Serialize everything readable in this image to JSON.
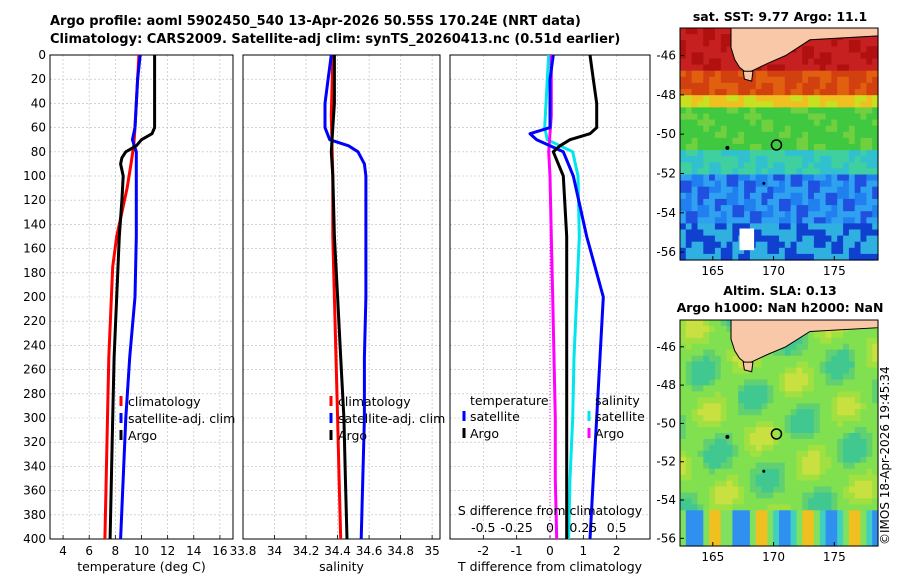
{
  "title": {
    "line1": "Argo profile: aoml 5902450_540 13-Apr-2026 50.55S 170.24E (NRT data)",
    "line2": "Climatology: CARS2009. Satellite-adj clim: synTS_20260413.nc (0.51d earlier)"
  },
  "colors": {
    "climatology": "#ff0000",
    "satellite": "#0000ff",
    "argo": "#000000",
    "sat_salinity": "#00e5ee",
    "clim_salinity": "#ff00ff"
  },
  "chart_data": [
    {
      "type": "line",
      "name": "temperature-profile",
      "xlabel": "temperature (deg C)",
      "ylabel": "",
      "xlim": [
        3,
        17
      ],
      "ylim": [
        400,
        0
      ],
      "xticks": [
        4,
        6,
        8,
        10,
        12,
        14,
        16
      ],
      "yticks": [
        0,
        20,
        40,
        60,
        80,
        100,
        120,
        140,
        160,
        180,
        200,
        220,
        240,
        260,
        280,
        300,
        320,
        340,
        360,
        380,
        400
      ],
      "legend": [
        "climatology",
        "satellite-adj. clim",
        "Argo"
      ],
      "series": [
        {
          "name": "climatology",
          "depth": [
            0,
            20,
            40,
            60,
            75,
            90,
            110,
            130,
            150,
            175,
            200,
            250,
            300,
            350,
            400
          ],
          "values": [
            9.8,
            9.7,
            9.6,
            9.5,
            9.4,
            9.2,
            8.9,
            8.5,
            8.1,
            7.8,
            7.7,
            7.5,
            7.4,
            7.3,
            7.2
          ]
        },
        {
          "name": "satellite-adj. clim",
          "depth": [
            0,
            20,
            40,
            60,
            70,
            80,
            100,
            150,
            200,
            250,
            300,
            350,
            400
          ],
          "values": [
            9.9,
            9.7,
            9.6,
            9.5,
            9.3,
            9.6,
            9.6,
            9.6,
            9.5,
            9.1,
            8.8,
            8.6,
            8.4
          ]
        },
        {
          "name": "Argo",
          "depth": [
            0,
            20,
            40,
            60,
            65,
            70,
            75,
            80,
            85,
            90,
            100,
            120,
            150,
            200,
            250,
            300,
            350,
            400
          ],
          "values": [
            11.0,
            11.0,
            11.0,
            11.0,
            10.8,
            10.0,
            9.6,
            8.8,
            8.5,
            8.4,
            8.6,
            8.5,
            8.3,
            8.1,
            7.9,
            7.8,
            7.7,
            7.6
          ]
        }
      ]
    },
    {
      "type": "line",
      "name": "salinity-profile",
      "xlabel": "salinity",
      "ylabel": "",
      "xlim": [
        33.8,
        35.05
      ],
      "ylim": [
        400,
        0
      ],
      "xticks": [
        33.8,
        34,
        34.2,
        34.4,
        34.6,
        34.8,
        35
      ],
      "legend": [
        "climatology",
        "satellite-adj. clim",
        "Argo"
      ],
      "series": [
        {
          "name": "climatology",
          "depth": [
            0,
            50,
            100,
            150,
            200,
            250,
            300,
            350,
            400
          ],
          "values": [
            34.37,
            34.36,
            34.37,
            34.37,
            34.38,
            34.39,
            34.4,
            34.41,
            34.42
          ]
        },
        {
          "name": "satellite-adj. clim",
          "depth": [
            0,
            20,
            40,
            60,
            70,
            75,
            80,
            90,
            100,
            150,
            200,
            250,
            300,
            350,
            400
          ],
          "values": [
            34.36,
            34.34,
            34.32,
            34.32,
            34.35,
            34.47,
            34.53,
            34.57,
            34.58,
            34.58,
            34.58,
            34.57,
            34.57,
            34.56,
            34.55
          ]
        },
        {
          "name": "Argo",
          "depth": [
            0,
            40,
            60,
            80,
            100,
            150,
            200,
            250,
            300,
            350,
            400
          ],
          "values": [
            34.38,
            34.38,
            34.37,
            34.36,
            34.37,
            34.38,
            34.4,
            34.42,
            34.44,
            34.45,
            34.46
          ]
        }
      ]
    },
    {
      "type": "line",
      "name": "difference-profile",
      "xlabel": "T difference from climatology",
      "x2label": "S difference from climatology",
      "xlim": [
        -3,
        3
      ],
      "ylim": [
        400,
        0
      ],
      "xticks": [
        -2,
        -1,
        0,
        1,
        2
      ],
      "x2ticks": [
        -0.5,
        -0.25,
        0,
        0.25,
        0.5
      ],
      "x2ticklabels": [
        "-0.5",
        "-0.25",
        "0",
        "0.25",
        "0.5"
      ],
      "legend": [
        "temperature",
        "satellite",
        "Argo",
        "salinity",
        "satellite",
        "Argo"
      ],
      "series": [
        {
          "name": "T satellite",
          "depth": [
            0,
            20,
            40,
            60,
            65,
            70,
            75,
            80,
            100,
            150,
            200,
            250,
            300,
            350,
            400
          ],
          "values": [
            0.1,
            0.0,
            0.0,
            0.0,
            -0.6,
            -0.4,
            0.0,
            0.4,
            0.7,
            1.1,
            1.6,
            1.5,
            1.4,
            1.3,
            1.2
          ]
        },
        {
          "name": "T Argo",
          "depth": [
            0,
            20,
            40,
            60,
            65,
            70,
            75,
            80,
            100,
            150,
            200,
            250,
            300,
            350,
            400
          ],
          "values": [
            1.2,
            1.3,
            1.4,
            1.4,
            1.2,
            0.6,
            0.3,
            0.1,
            0.4,
            0.5,
            0.5,
            0.5,
            0.5,
            0.5,
            0.5
          ]
        },
        {
          "name": "S satellite",
          "depth": [
            0,
            20,
            40,
            60,
            70,
            80,
            100,
            150,
            200,
            250,
            300,
            350,
            400
          ],
          "values": [
            -0.01,
            -0.02,
            -0.03,
            -0.04,
            -0.02,
            0.17,
            0.21,
            0.22,
            0.2,
            0.18,
            0.17,
            0.15,
            0.14
          ]
        },
        {
          "name": "S Argo",
          "depth": [
            0,
            50,
            80,
            100,
            150,
            200,
            250,
            300,
            350,
            400
          ],
          "values": [
            0.01,
            0.01,
            -0.01,
            0.0,
            0.01,
            0.02,
            0.03,
            0.04,
            0.04,
            0.05
          ]
        }
      ]
    }
  ],
  "sst_map": {
    "title": "sat. SST: 9.77 Argo: 11.1",
    "xticks": [
      165,
      170,
      175
    ],
    "yticks": [
      -46,
      -48,
      -50,
      -52,
      -54,
      -56
    ],
    "xlim": [
      162.3,
      178.6
    ],
    "ylim": [
      -56.4,
      -44.6
    ],
    "marker": {
      "lon": 170.24,
      "lat": -50.55
    }
  },
  "sla_map": {
    "title1": "Altim. SLA: 0.13",
    "title2": "Argo h1000: NaN h2000: NaN",
    "xticks": [
      165,
      170,
      175
    ],
    "yticks": [
      -46,
      -48,
      -50,
      -52,
      -54,
      -56
    ],
    "xlim": [
      162.3,
      178.6
    ],
    "ylim": [
      -56.4,
      -44.6
    ],
    "marker": {
      "lon": 170.24,
      "lat": -50.55
    }
  },
  "credit": "©IMOS 18-Apr-2026 19:45:34"
}
